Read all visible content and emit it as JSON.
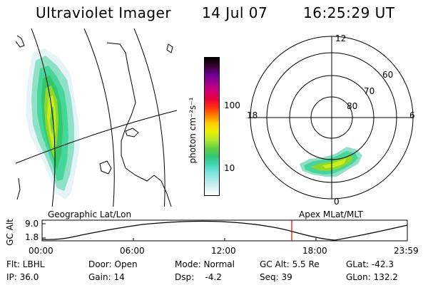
{
  "header": {
    "instrument": "Ultraviolet Imager",
    "date": "14 Jul 07",
    "time": "16:25:29 UT"
  },
  "colorbar": {
    "unit_label": "photon cm⁻²s⁻¹",
    "tick_100": "100",
    "tick_10": "10"
  },
  "polar_plot": {
    "mlt_top": "12",
    "mlt_bottom": "0",
    "mlt_left": "18",
    "mlt_right": "6",
    "lat_60": "60",
    "lat_70": "70",
    "lat_80": "80"
  },
  "altitude_plot": {
    "left_title": "Geographic Lat/Lon",
    "right_title": "Apex MLat/MLT",
    "ylabel": "GC Alt",
    "ytick_high": "9.0",
    "ytick_low": "1.8",
    "xticks": [
      "00:00",
      "06:00",
      "12:00",
      "18:00",
      "23:59"
    ],
    "current_marker_color": "#e00000"
  },
  "info": {
    "filter": "Flt: LBHL",
    "door": "Door: Open",
    "mode": "Mode: Normal",
    "gc_alt": "GC Alt: 5.5 Re",
    "glat": "GLat: -42.3",
    "ip": "IP: 36.0",
    "gain": "Gain: 14",
    "dsp": "Dsp:    -4.2",
    "seq": "Seq: 39",
    "glon": "GLon: 132.2"
  }
}
